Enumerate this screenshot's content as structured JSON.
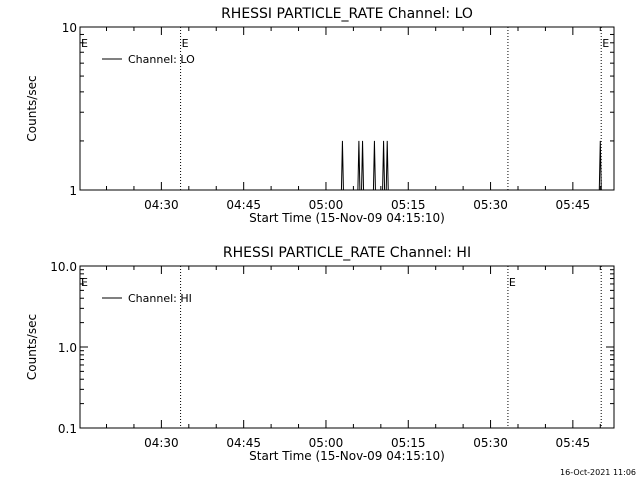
{
  "timestamp": "16-Oct-2021 11:06",
  "chart_data": [
    {
      "type": "line",
      "title": "RHESSI PARTICLE_RATE Channel: LO",
      "xlabel": "Start Time (15-Nov-09 04:15:10)",
      "ylabel": "Counts/sec",
      "yscale": "log",
      "ylim": [
        1,
        10
      ],
      "yticks": [
        {
          "value": 1,
          "label": "1"
        },
        {
          "value": 10,
          "label": "10"
        }
      ],
      "xlim": [
        "04:15:10",
        "05:52:30"
      ],
      "xticks": [
        "04:30",
        "04:45",
        "05:00",
        "05:15",
        "05:30",
        "05:45"
      ],
      "legend": {
        "position": "top-left",
        "entries": [
          "Channel: LO"
        ]
      },
      "markers": [
        {
          "time": "04:33:30",
          "label": "E"
        },
        {
          "time": "05:33:10",
          "label": ""
        },
        {
          "time": "05:50:10",
          "label": "E"
        }
      ],
      "left_edge_label": "E",
      "series": [
        {
          "name": "Channel: LO",
          "spikes": [
            {
              "time": "05:03:00",
              "value": 2
            },
            {
              "time": "05:06:00",
              "value": 2
            },
            {
              "time": "05:06:40",
              "value": 2
            },
            {
              "time": "05:08:50",
              "value": 2
            },
            {
              "time": "05:10:30",
              "value": 2
            },
            {
              "time": "05:11:10",
              "value": 2
            },
            {
              "time": "05:50:00",
              "value": 2
            }
          ]
        }
      ]
    },
    {
      "type": "line",
      "title": "RHESSI PARTICLE_RATE Channel: HI",
      "xlabel": "Start Time (15-Nov-09 04:15:10)",
      "ylabel": "Counts/sec",
      "yscale": "log",
      "ylim": [
        0.1,
        10
      ],
      "yticks": [
        {
          "value": 0.1,
          "label": "0.1"
        },
        {
          "value": 1,
          "label": "1.0"
        },
        {
          "value": 10,
          "label": "10.0"
        }
      ],
      "xlim": [
        "04:15:10",
        "05:52:30"
      ],
      "xticks": [
        "04:30",
        "04:45",
        "05:00",
        "05:15",
        "05:30",
        "05:45"
      ],
      "legend": {
        "position": "top-left",
        "entries": [
          "Channel: HI"
        ]
      },
      "markers": [
        {
          "time": "04:33:30",
          "label": ""
        },
        {
          "time": "05:33:10",
          "label": "E"
        },
        {
          "time": "05:50:10",
          "label": ""
        }
      ],
      "left_edge_label": "E",
      "series": [
        {
          "name": "Channel: HI",
          "spikes": []
        }
      ]
    }
  ]
}
